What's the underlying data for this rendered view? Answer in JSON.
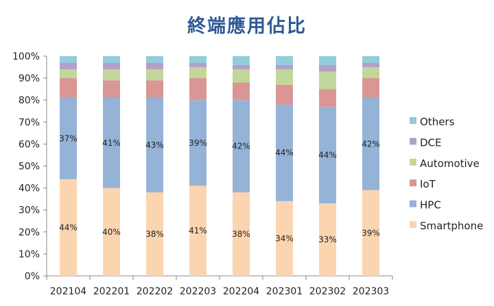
{
  "chart_data": {
    "type": "bar",
    "stacked": true,
    "title": "終端應用佔比",
    "categories": [
      "202104",
      "202201",
      "202202",
      "202203",
      "202204",
      "202301",
      "202302",
      "202303"
    ],
    "ylim": [
      0,
      100
    ],
    "y_ticks": [
      "0%",
      "10%",
      "20%",
      "30%",
      "40%",
      "50%",
      "60%",
      "70%",
      "80%",
      "90%",
      "100%"
    ],
    "legend_position": "right",
    "series": [
      {
        "name": "Smartphone",
        "color": "#fbd5b0",
        "values": [
          44,
          40,
          38,
          41,
          38,
          34,
          33,
          39
        ],
        "labels": [
          "44%",
          "40%",
          "38%",
          "41%",
          "38%",
          "34%",
          "33%",
          "39%"
        ]
      },
      {
        "name": "HPC",
        "color": "#95b3d7",
        "values": [
          37,
          41,
          43,
          39,
          42,
          44,
          44,
          42
        ],
        "labels": [
          "37%",
          "41%",
          "43%",
          "39%",
          "42%",
          "44%",
          "44%",
          "42%"
        ]
      },
      {
        "name": "IoT",
        "color": "#da9694",
        "values": [
          9,
          8,
          8,
          10,
          8,
          9,
          8,
          9
        ]
      },
      {
        "name": "Automotive",
        "color": "#c3d69b",
        "values": [
          4,
          5,
          5,
          5,
          6,
          7,
          8,
          5
        ]
      },
      {
        "name": "DCE",
        "color": "#b1a0c7",
        "values": [
          3,
          3,
          3,
          2,
          2,
          2,
          3,
          2
        ]
      },
      {
        "name": "Others",
        "color": "#92cddc",
        "values": [
          3,
          3,
          3,
          3,
          4,
          4,
          4,
          3
        ]
      }
    ]
  }
}
